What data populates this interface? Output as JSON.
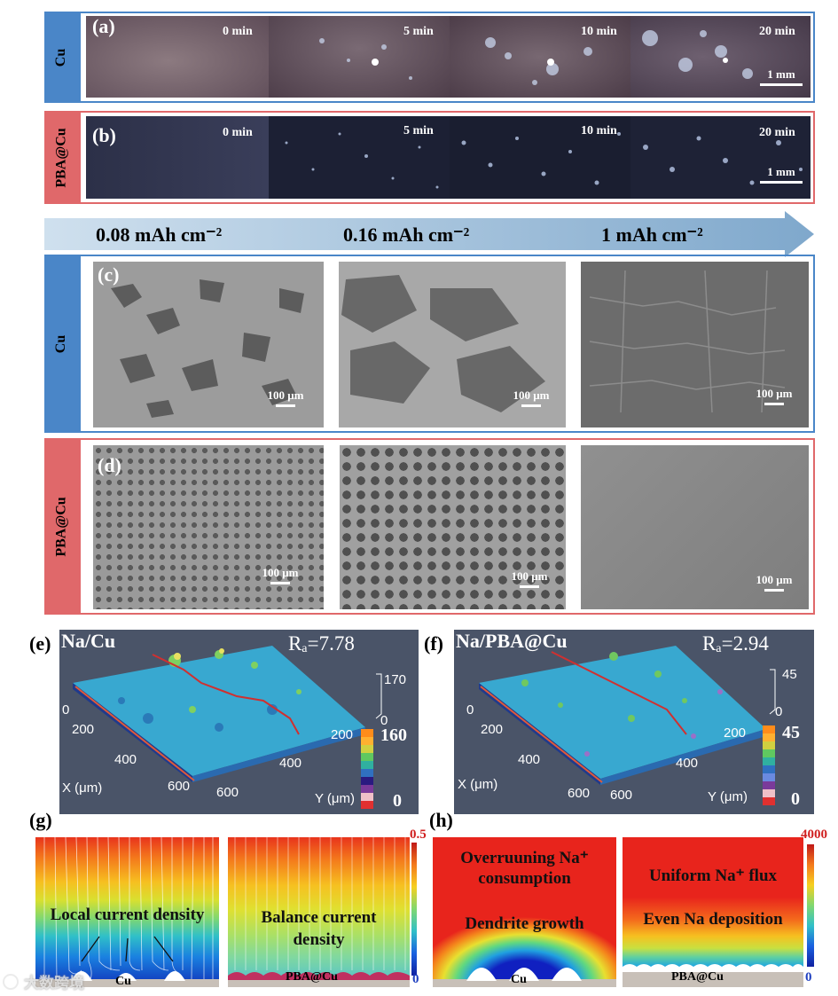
{
  "row_a": {
    "label": "(a)",
    "side": "Cu",
    "times": [
      "0 min",
      "5 min",
      "10 min",
      "20 min"
    ],
    "scale": "1 mm"
  },
  "row_b": {
    "label": "(b)",
    "side": "PBA@Cu",
    "times": [
      "0 min",
      "5 min",
      "10 min",
      "20 min"
    ],
    "scale": "1 mm"
  },
  "arrow": {
    "capacities": [
      "0.08 mAh cm⁻²",
      "0.16 mAh cm⁻²",
      "1 mAh cm⁻²"
    ]
  },
  "row_c": {
    "label": "(c)",
    "side": "Cu",
    "scale": "100 μm"
  },
  "row_d": {
    "label": "(d)",
    "side": "PBA@Cu",
    "scale": "100 μm"
  },
  "panel_e": {
    "label": "(e)",
    "title": "Na/Cu",
    "ra": "Rₐ=7.78",
    "xticks": [
      "0",
      "200",
      "400",
      "600"
    ],
    "yticks": [
      "600",
      "400",
      "200",
      "0"
    ],
    "xlabel": "X (μm)",
    "ylabel": "Y (μm)",
    "zmax": "170",
    "zbar_max": "160",
    "zbar_min": "0",
    "zero": "0"
  },
  "panel_f": {
    "label": "(f)",
    "title": "Na/PBA@Cu",
    "ra": "Rₐ=2.94",
    "xticks": [
      "0",
      "200",
      "400",
      "600"
    ],
    "yticks": [
      "600",
      "400",
      "200",
      "0"
    ],
    "xlabel": "X (μm)",
    "ylabel": "Y (μm)",
    "zmax": "45",
    "zbar_max": "45",
    "zbar_min": "0",
    "zero": "0"
  },
  "panel_g": {
    "label": "(g)",
    "left_text": "Local current density",
    "left_sub": "Cu",
    "right_text_1": "Balance current",
    "right_text_2": "density",
    "right_sub": "PBA@Cu",
    "cbar_max": "0.5",
    "cbar_min": "0"
  },
  "panel_h": {
    "label": "(h)",
    "left_text_1": "Overruuning Na⁺",
    "left_text_2": "consumption",
    "left_text_3": "Dendrite growth",
    "left_sub": "Cu",
    "right_text_1": "Uniform Na⁺ flux",
    "right_text_2": "Even Na deposition",
    "right_sub": "PBA@Cu",
    "cbar_max": "4000",
    "cbar_min": "0"
  },
  "watermark": "大数跨境",
  "colors": {
    "blue": "#4a86c8",
    "red": "#e0686a",
    "arrow": "#a9c8e0"
  }
}
